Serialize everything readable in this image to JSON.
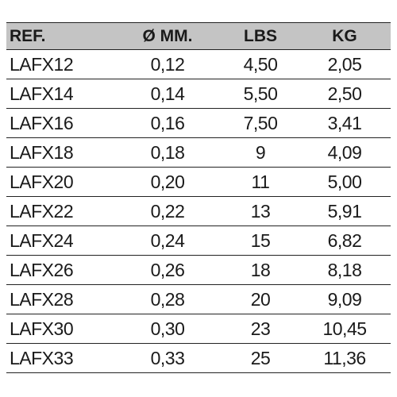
{
  "table": {
    "header": [
      "REF.",
      "Ø MM.",
      "LBS",
      "KG"
    ],
    "rows": [
      [
        "LAFX12",
        "0,12",
        "4,50",
        "2,05"
      ],
      [
        "LAFX14",
        "0,14",
        "5,50",
        "2,50"
      ],
      [
        "LAFX16",
        "0,16",
        "7,50",
        "3,41"
      ],
      [
        "LAFX18",
        "0,18",
        "9",
        "4,09"
      ],
      [
        "LAFX20",
        "0,20",
        "11",
        "5,00"
      ],
      [
        "LAFX22",
        "0,22",
        "13",
        "5,91"
      ],
      [
        "LAFX24",
        "0,24",
        "15",
        "6,82"
      ],
      [
        "LAFX26",
        "0,26",
        "18",
        "8,18"
      ],
      [
        "LAFX28",
        "0,28",
        "20",
        "9,09"
      ],
      [
        "LAFX30",
        "0,30",
        "23",
        "10,45"
      ],
      [
        "LAFX33",
        "0,33",
        "25",
        "11,36"
      ]
    ]
  }
}
